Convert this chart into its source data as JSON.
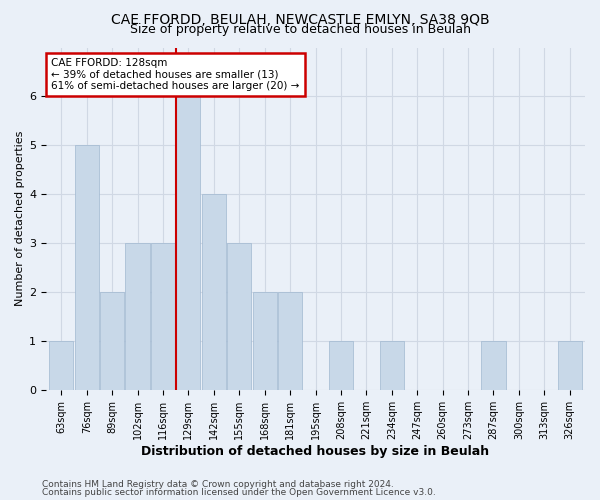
{
  "title1": "CAE FFORDD, BEULAH, NEWCASTLE EMLYN, SA38 9QB",
  "title2": "Size of property relative to detached houses in Beulah",
  "xlabel": "Distribution of detached houses by size in Beulah",
  "ylabel": "Number of detached properties",
  "categories": [
    "63sqm",
    "76sqm",
    "89sqm",
    "102sqm",
    "116sqm",
    "129sqm",
    "142sqm",
    "155sqm",
    "168sqm",
    "181sqm",
    "195sqm",
    "208sqm",
    "221sqm",
    "234sqm",
    "247sqm",
    "260sqm",
    "273sqm",
    "287sqm",
    "300sqm",
    "313sqm",
    "326sqm"
  ],
  "values": [
    1,
    5,
    2,
    3,
    3,
    6,
    4,
    3,
    2,
    2,
    0,
    1,
    0,
    1,
    0,
    0,
    0,
    1,
    0,
    0,
    1
  ],
  "marker_index": 5,
  "bar_color": "#c8d8e8",
  "bar_edge_color": "#a0b8d0",
  "marker_line_color": "#cc0000",
  "annotation_title": "CAE FFORDD: 128sqm",
  "annotation_line1": "← 39% of detached houses are smaller (13)",
  "annotation_line2": "61% of semi-detached houses are larger (20) →",
  "annotation_box_color": "#ffffff",
  "annotation_box_edge": "#cc0000",
  "footer1": "Contains HM Land Registry data © Crown copyright and database right 2024.",
  "footer2": "Contains public sector information licensed under the Open Government Licence v3.0.",
  "ylim": [
    0,
    7
  ],
  "yticks": [
    0,
    1,
    2,
    3,
    4,
    5,
    6
  ],
  "background_color": "#eaf0f8",
  "grid_color": "#d0d8e4",
  "title1_fontsize": 10,
  "title2_fontsize": 9,
  "xlabel_fontsize": 9,
  "ylabel_fontsize": 8,
  "tick_fontsize": 7,
  "footer_fontsize": 6.5
}
